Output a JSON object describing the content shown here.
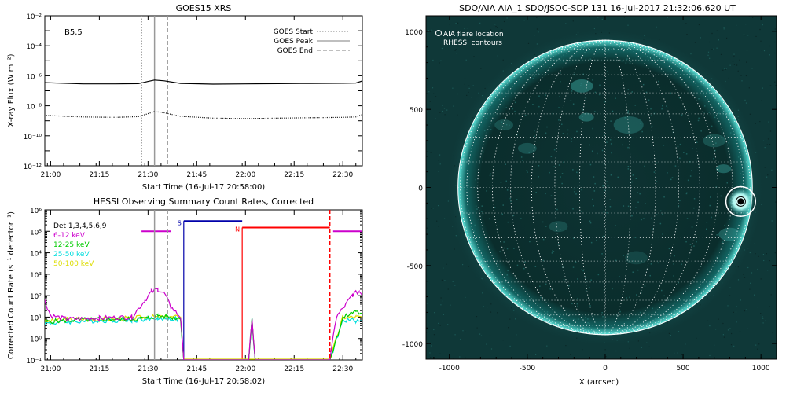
{
  "chart_data": [
    {
      "type": "line",
      "title": "GOES15 XRS",
      "xlabel": "Start Time (16-Jul-17 20:58:00)",
      "ylabel": "X-ray Flux (W m⁻²)",
      "y_scale": "log",
      "ylim": [
        1e-12,
        0.01
      ],
      "y_ticks": [
        "10⁻¹²",
        "10⁻¹⁰",
        "10⁻⁸",
        "10⁻⁶",
        "10⁻⁴",
        "10⁻²"
      ],
      "x_ticks": [
        "21:00",
        "21:15",
        "21:30",
        "21:45",
        "22:00",
        "22:15",
        "22:30"
      ],
      "xlim_minutes": [
        20.97,
        22.6
      ],
      "annotation": "B5.5",
      "legend": {
        "position": "top-right",
        "entries": [
          "GOES Start",
          "GOES Peak",
          "GOES End"
        ]
      },
      "markers": [
        {
          "name": "GOES Start",
          "time": "21:28",
          "style": "dotted",
          "color": "#999999"
        },
        {
          "name": "GOES Peak",
          "time": "21:32",
          "style": "solid",
          "color": "#999999"
        },
        {
          "name": "GOES End",
          "time": "21:36",
          "style": "dashed",
          "color": "#999999"
        }
      ],
      "series": [
        {
          "channel": "long",
          "color": "#000000",
          "style": "solid",
          "x": [
            "20:58",
            "21:10",
            "21:20",
            "21:27",
            "21:30",
            "21:32",
            "21:35",
            "21:40",
            "21:50",
            "22:00",
            "22:10",
            "22:20",
            "22:30",
            "22:34",
            "22:36"
          ],
          "values": [
            3.5e-07,
            2.9e-07,
            2.9e-07,
            3e-07,
            4.2e-07,
            5.2e-07,
            4.6e-07,
            3.1e-07,
            2.8e-07,
            2.9e-07,
            3e-07,
            3.1e-07,
            3.2e-07,
            3.3e-07,
            4.5e-07
          ]
        },
        {
          "channel": "short",
          "color": "#000000",
          "style": "dotted",
          "x": [
            "20:58",
            "21:10",
            "21:20",
            "21:27",
            "21:30",
            "21:32",
            "21:35",
            "21:40",
            "21:50",
            "22:00",
            "22:10",
            "22:20",
            "22:30",
            "22:34",
            "22:36"
          ],
          "values": [
            2.3e-09,
            1.8e-09,
            1.7e-09,
            1.9e-09,
            3e-09,
            4.2e-09,
            3.4e-09,
            2e-09,
            1.5e-09,
            1.4e-09,
            1.5e-09,
            1.6e-09,
            1.7e-09,
            1.8e-09,
            2.6e-09
          ]
        }
      ]
    },
    {
      "type": "line",
      "title": "HESSI Observing Summary Count Rates, Corrected",
      "xlabel": "Start Time (16-Jul-17 20:58:02)",
      "ylabel": "Corrected Count Rate (s⁻¹ detector⁻¹)",
      "y_scale": "log",
      "ylim": [
        0.1,
        1000000
      ],
      "y_ticks": [
        "10⁻¹",
        "10⁰",
        "10¹",
        "10²",
        "10³",
        "10⁴",
        "10⁵",
        "10⁶"
      ],
      "x_ticks": [
        "21:00",
        "21:15",
        "21:30",
        "21:45",
        "22:00",
        "22:15",
        "22:30"
      ],
      "xlim_minutes": [
        20.97,
        22.6
      ],
      "detectors": "Det 1,3,4,5,6,9",
      "legend": {
        "position": "top-left"
      },
      "markers": [
        {
          "time": "21:32",
          "style": "solid",
          "color": "#999999"
        },
        {
          "time": "21:36",
          "style": "dashed",
          "color": "#999999"
        },
        {
          "time": "22:26",
          "style": "dashed",
          "color": "#ff0000"
        }
      ],
      "attenuator_states": [
        {
          "label": "S",
          "start": "21:41",
          "end": "21:59",
          "level": 300000,
          "color": "#0000aa"
        },
        {
          "label": "N",
          "start": "21:59",
          "end": "22:26",
          "level": 150000,
          "color": "#ff0000"
        }
      ],
      "attenuator_bars": [
        {
          "start": "21:28",
          "end": "21:37",
          "level": 100000,
          "color": "#cc00cc"
        },
        {
          "start": "22:27",
          "end": "22:36",
          "level": 100000,
          "color": "#cc00cc"
        }
      ],
      "series": [
        {
          "name": "6-12 keV",
          "color": "#cc00cc",
          "x": [
            "20:58",
            "21:00",
            "21:05",
            "21:15",
            "21:25",
            "21:29",
            "21:31",
            "21:33",
            "21:35",
            "21:37",
            "21:40",
            "21:41",
            "22:01",
            "22:02",
            "22:03",
            "22:26",
            "22:28",
            "22:31",
            "22:33",
            "22:35",
            "22:36"
          ],
          "values": [
            70,
            12,
            8,
            9,
            10,
            60,
            150,
            200,
            130,
            30,
            10,
            0.1,
            0.1,
            9,
            0.1,
            0.1,
            10,
            40,
            110,
            160,
            120
          ]
        },
        {
          "name": "12-25 keV",
          "color": "#00cc00",
          "x": [
            "20:58",
            "21:05",
            "21:15",
            "21:25",
            "21:30",
            "21:33",
            "21:36",
            "21:40",
            "21:41",
            "22:01",
            "22:02",
            "22:03",
            "22:26",
            "22:30",
            "22:34",
            "22:36"
          ],
          "values": [
            6,
            7,
            8,
            8,
            9,
            12,
            10,
            9,
            0.1,
            0.1,
            8,
            0.1,
            0.1,
            9,
            20,
            12
          ]
        },
        {
          "name": "25-50 keV",
          "color": "#00dddd",
          "x": [
            "20:58",
            "21:05",
            "21:15",
            "21:25",
            "21:30",
            "21:33",
            "21:36",
            "21:40",
            "21:41",
            "22:01",
            "22:02",
            "22:03",
            "22:26",
            "22:30",
            "22:34",
            "22:36"
          ],
          "values": [
            5,
            6,
            7,
            7,
            8,
            9,
            8,
            8,
            0.1,
            0.1,
            7,
            0.1,
            0.1,
            7,
            7,
            6
          ]
        },
        {
          "name": "50-100 keV",
          "color": "#dddd00",
          "x": [
            "20:58",
            "21:05",
            "21:15",
            "21:25",
            "21:30",
            "21:33",
            "21:36",
            "21:40",
            "21:41",
            "22:01",
            "22:02",
            "22:03",
            "22:26",
            "22:30",
            "22:34",
            "22:36"
          ],
          "values": [
            6,
            8,
            8,
            9,
            10,
            10,
            10,
            10,
            0.1,
            0.1,
            9,
            0.1,
            0.1,
            10,
            10,
            10
          ]
        }
      ]
    },
    {
      "type": "heatmap",
      "title": "SDO/AIA AIA_1 SDO/JSOC-SDP 131 16-Jul-2017 21:32:06.620 UT",
      "xlabel": "X (arcsec)",
      "ylabel": "",
      "xlim": [
        -1150,
        1100
      ],
      "ylim": [
        -1100,
        1100
      ],
      "x_ticks": [
        "-1000",
        "-500",
        "0",
        "500",
        "1000"
      ],
      "y_ticks": [
        "-1000",
        "-500",
        "0",
        "500",
        "1000"
      ],
      "solar_radius_arcsec": 945,
      "disk_color": "#0a2a2a",
      "limb_color": "#40d8d0",
      "legend_entries": [
        "AIA flare location",
        "RHESSI contours"
      ],
      "flare_location": {
        "x": 870,
        "y": -90,
        "circle_radius_arcsec": 95
      }
    }
  ]
}
